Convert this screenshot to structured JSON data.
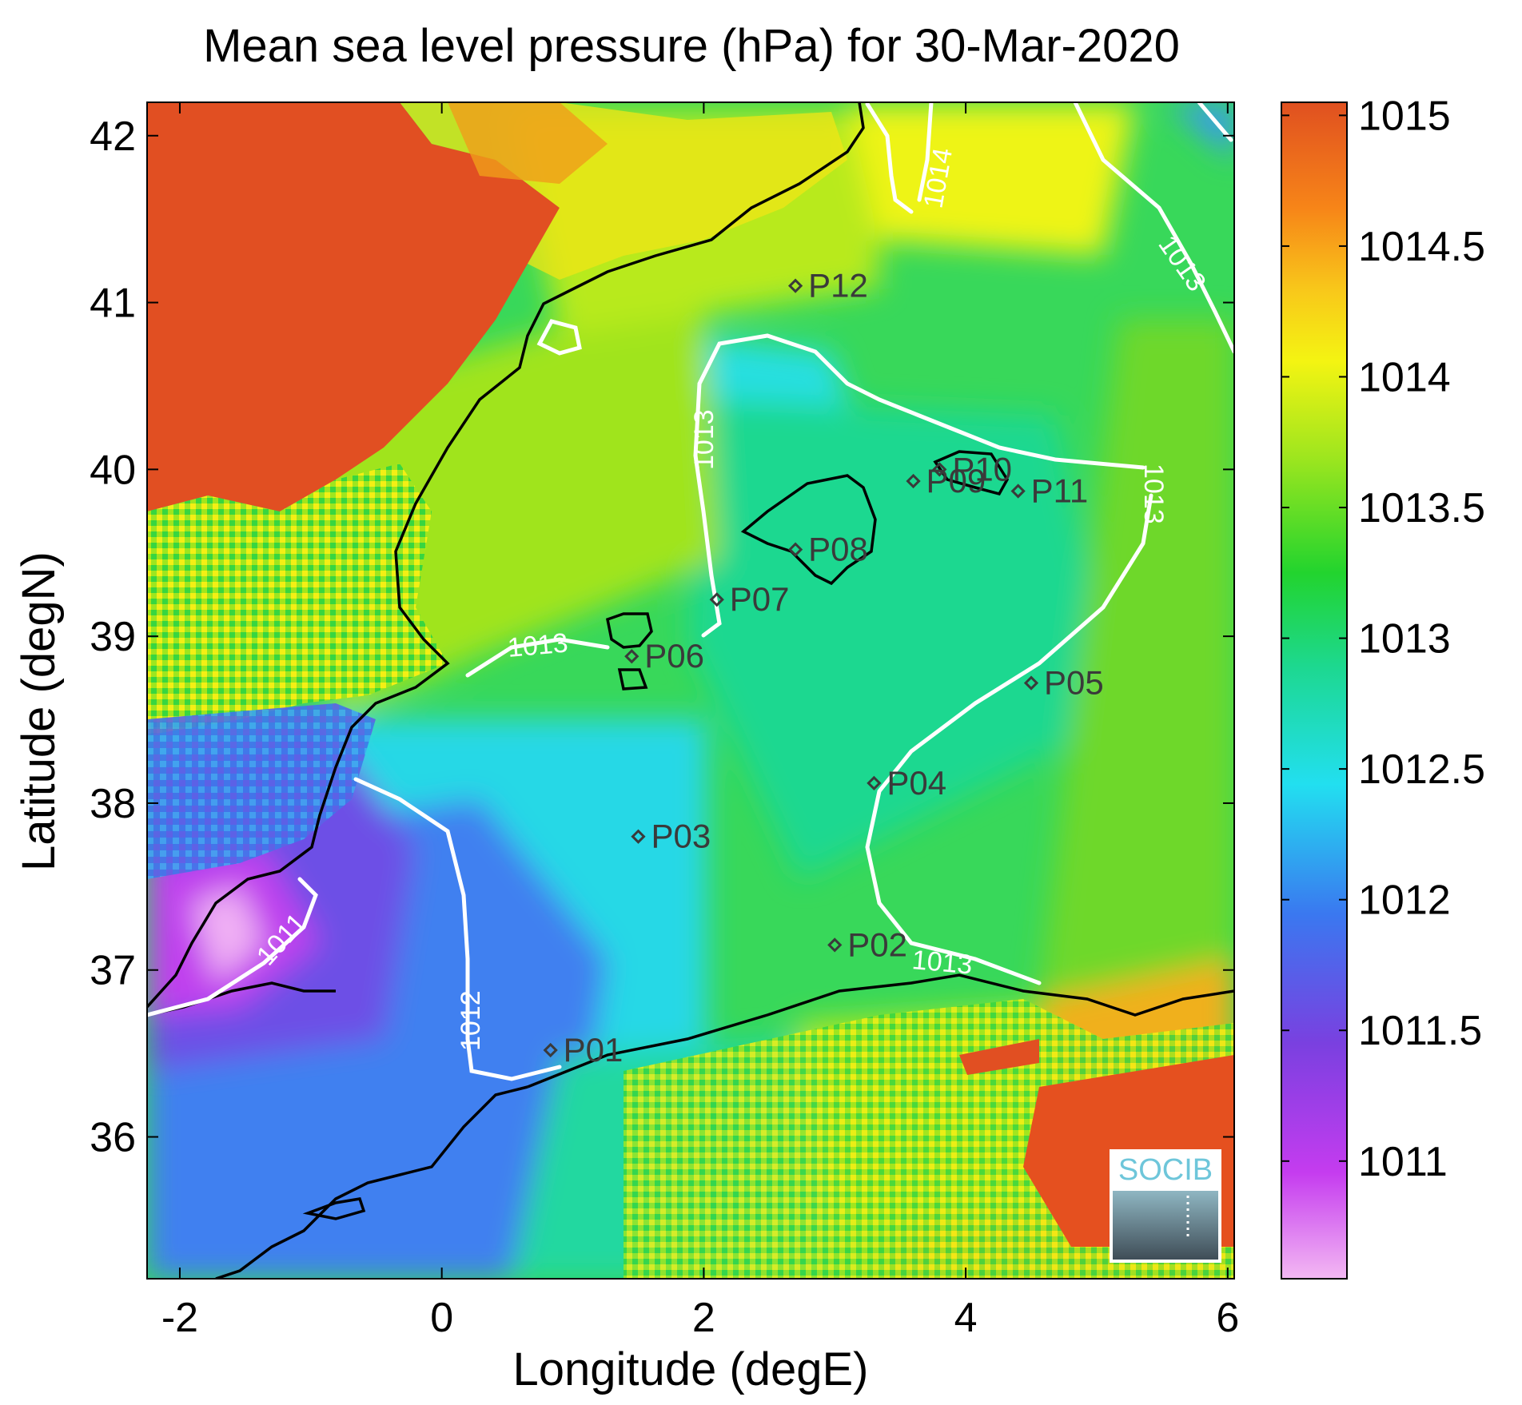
{
  "title": "Mean sea level pressure (hPa) for 30-Mar-2020",
  "axes": {
    "xlabel": "Longitude (degE)",
    "ylabel": "Latitude (degN)",
    "xlim": [
      -2.25,
      6.05
    ],
    "ylim": [
      35.15,
      42.2
    ],
    "xticks": [
      -2,
      0,
      2,
      4,
      6
    ],
    "yticks": [
      36,
      37,
      38,
      39,
      40,
      41,
      42
    ],
    "xtick_labels": [
      "-2",
      "0",
      "2",
      "4",
      "6"
    ],
    "ytick_labels": [
      "36",
      "37",
      "38",
      "39",
      "40",
      "41",
      "42"
    ]
  },
  "colorbar": {
    "ticks": [
      "1015",
      "1014.5",
      "1014",
      "1013.5",
      "1013",
      "1012.5",
      "1012",
      "1011.5",
      "1011"
    ],
    "range": [
      1010.55,
      1015.05
    ],
    "colormap": [
      "#f3b8f3",
      "#c53cef",
      "#7a40e0",
      "#3a78f0",
      "#22dff0",
      "#1dd890",
      "#22d42e",
      "#a0e61e",
      "#f4f412",
      "#f8c81a",
      "#f78518",
      "#e05020"
    ]
  },
  "stations": [
    {
      "label": "P01",
      "lon": 0.83,
      "lat": 36.52
    },
    {
      "label": "P02",
      "lon": 3.0,
      "lat": 37.15
    },
    {
      "label": "P03",
      "lon": 1.5,
      "lat": 37.8
    },
    {
      "label": "P04",
      "lon": 3.3,
      "lat": 38.12
    },
    {
      "label": "P05",
      "lon": 4.5,
      "lat": 38.72
    },
    {
      "label": "P06",
      "lon": 1.45,
      "lat": 38.88
    },
    {
      "label": "P07",
      "lon": 2.1,
      "lat": 39.22
    },
    {
      "label": "P08",
      "lon": 2.7,
      "lat": 39.52
    },
    {
      "label": "P09",
      "lon": 3.6,
      "lat": 39.93
    },
    {
      "label": "P10",
      "lon": 3.8,
      "lat": 40.0
    },
    {
      "label": "P11",
      "lon": 4.4,
      "lat": 39.87
    },
    {
      "label": "P12",
      "lon": 2.7,
      "lat": 41.1
    }
  ],
  "contour_labels": [
    "1014",
    "1013",
    "1013",
    "1013",
    "1013",
    "1013",
    "1012",
    "1011"
  ],
  "logo": {
    "text": "SOCIB"
  }
}
